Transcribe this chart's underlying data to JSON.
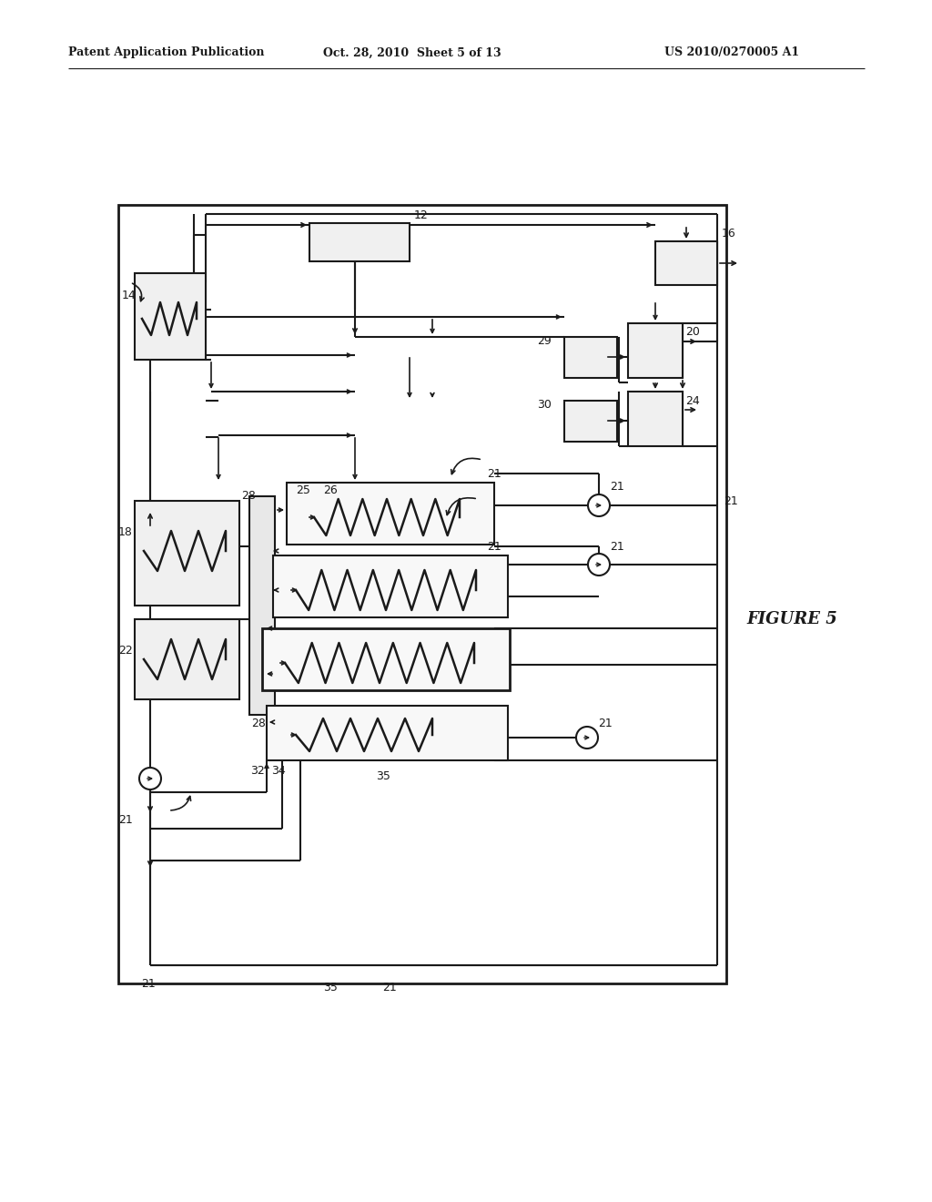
{
  "bg_color": "#ffffff",
  "lc": "#1a1a1a",
  "header1": "Patent Application Publication",
  "header2": "Oct. 28, 2010  Sheet 5 of 13",
  "header3": "US 2010/0270005 A1",
  "fig_label": "FIGURE 5"
}
